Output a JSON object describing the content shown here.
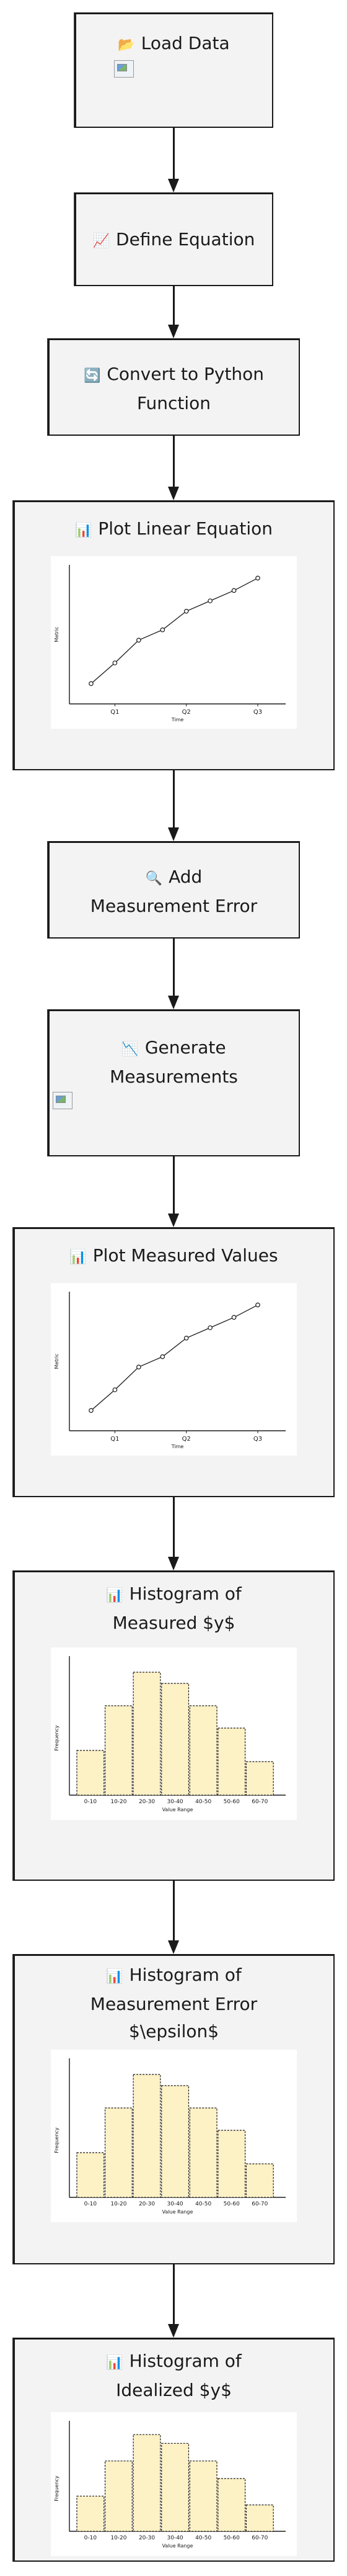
{
  "nodes": [
    {
      "icon": "📂",
      "label": "Load Data"
    },
    {
      "icon": "📈",
      "label": "Define Equation"
    },
    {
      "icon": "🔄",
      "label": "Convert to Python Function"
    },
    {
      "icon": "📊",
      "label": "Plot Linear Equation"
    },
    {
      "icon": "🔍",
      "label": "Add Measurement Error"
    },
    {
      "icon": "📉",
      "label": "Generate Measurements"
    },
    {
      "icon": "📊",
      "label": "Plot Measured Values"
    },
    {
      "icon": "📊",
      "label": "Histogram of Measured $y$"
    },
    {
      "icon": "📊",
      "label": "Histogram of Measurement Error $\\epsilon$"
    },
    {
      "icon": "📊",
      "label": "Histogram of Idealized $y$"
    }
  ],
  "line_plot": {
    "ylabel": "Metric",
    "xlabel": "Time",
    "xticks": [
      "Q1",
      "Q2",
      "Q3"
    ]
  },
  "histogram": {
    "ylabel": "Frequency",
    "xlabel": "Value Range",
    "categories": [
      "0-10",
      "10-20",
      "20-30",
      "30-40",
      "40-50",
      "50-60",
      "60-70"
    ]
  },
  "chart_data": [
    {
      "type": "line",
      "x": [
        1,
        2,
        3,
        4,
        5,
        6,
        7,
        8
      ],
      "y": [
        5,
        15,
        26,
        31,
        40,
        45,
        50,
        56
      ],
      "xlabel": "Time",
      "ylabel": "Metric",
      "xticks": [
        "Q1",
        "Q2",
        "Q3"
      ]
    },
    {
      "type": "line",
      "x": [
        1,
        2,
        3,
        4,
        5,
        6,
        7,
        8
      ],
      "y": [
        5,
        15,
        26,
        31,
        40,
        45,
        50,
        56
      ],
      "xlabel": "Time",
      "ylabel": "Metric",
      "xticks": [
        "Q1",
        "Q2",
        "Q3"
      ]
    },
    {
      "type": "bar",
      "categories": [
        "0-10",
        "10-20",
        "20-30",
        "30-40",
        "40-50",
        "50-60",
        "60-70"
      ],
      "values": [
        20,
        40,
        55,
        50,
        40,
        30,
        15
      ],
      "xlabel": "Value Range",
      "ylabel": "Frequency"
    },
    {
      "type": "bar",
      "categories": [
        "0-10",
        "10-20",
        "20-30",
        "30-40",
        "40-50",
        "50-60",
        "60-70"
      ],
      "values": [
        20,
        40,
        55,
        50,
        40,
        30,
        15
      ],
      "xlabel": "Value Range",
      "ylabel": "Frequency"
    },
    {
      "type": "bar",
      "categories": [
        "0-10",
        "10-20",
        "20-30",
        "30-40",
        "40-50",
        "50-60",
        "60-70"
      ],
      "values": [
        20,
        40,
        55,
        50,
        40,
        30,
        15
      ],
      "xlabel": "Value Range",
      "ylabel": "Frequency"
    }
  ],
  "colors": {
    "bar_fill": "#fdf1c6",
    "node_fill": "#f3f3f3",
    "stroke": "#1a1a1a"
  }
}
